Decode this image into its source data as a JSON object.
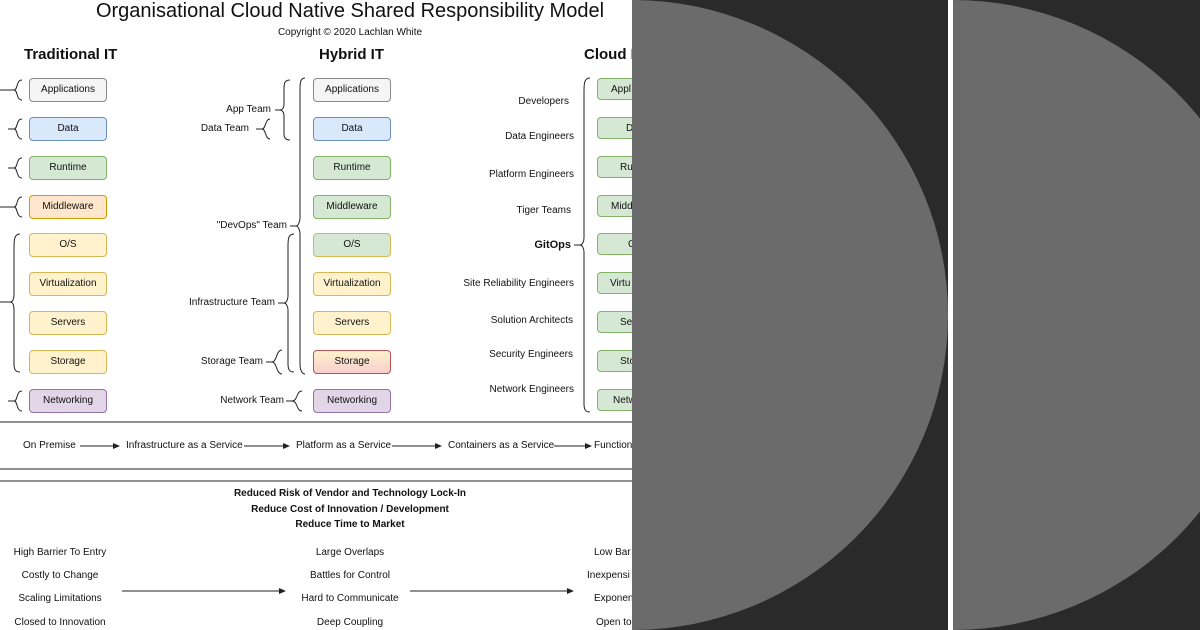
{
  "title": "Organisational Cloud Native Shared Responsibility Model",
  "copyright": "Copyright © 2020 Lachlan White",
  "columns": {
    "traditional": {
      "heading": "Traditional IT",
      "boxes": [
        "Applications",
        "Data",
        "Runtime",
        "Middleware",
        "O/S",
        "Virtualization",
        "Servers",
        "Storage",
        "Networking"
      ]
    },
    "hybrid": {
      "heading": "Hybrid IT",
      "boxes": [
        "Applications",
        "Data",
        "Runtime",
        "Middleware",
        "O/S",
        "Virtualization",
        "Servers",
        "Storage",
        "Networking"
      ],
      "teams": {
        "app": "App Team",
        "data": "Data Team",
        "devops": "\"DevOps\" Team",
        "infra": "Infrastructure Team",
        "storage": "Storage Team",
        "network": "Network Team"
      }
    },
    "cloud": {
      "heading": "Cloud I",
      "boxes": [
        "Appl",
        "D",
        "Ru",
        "Midd",
        "C",
        "Virtu",
        "Se",
        "Sto",
        "Netw"
      ],
      "roles": [
        "Developers",
        "Data Engineers",
        "Platform Engineers",
        "Tiger Teams",
        "GitOps",
        "Site Reliability Engineers",
        "Solution Architects",
        "Security Engineers",
        "Network Engineers"
      ]
    }
  },
  "service_flow": [
    "On Premise",
    "Infrastructure as a Service",
    "Platform as a Service",
    "Containers as a Service",
    "Function"
  ],
  "benefits": [
    "Reduced Risk of Vendor and Technology Lock-In",
    "Reduce Cost of Innovation / Development",
    "Reduce Time to Market"
  ],
  "traits": {
    "traditional": [
      "High Barrier To Entry",
      "Costly to Change",
      "Scaling Limitations",
      "Closed to Innovation"
    ],
    "hybrid": [
      "Large Overlaps",
      "Battles for Control",
      "Hard to Communicate",
      "Deep Coupling"
    ],
    "cloud": [
      "Low Bar",
      "Inexpensi",
      "Exponen",
      "Open to"
    ]
  },
  "colors": {
    "dark_background": "#2a2a2a",
    "circle_fill": "#6b6b6b",
    "divider": "#ffffff"
  }
}
